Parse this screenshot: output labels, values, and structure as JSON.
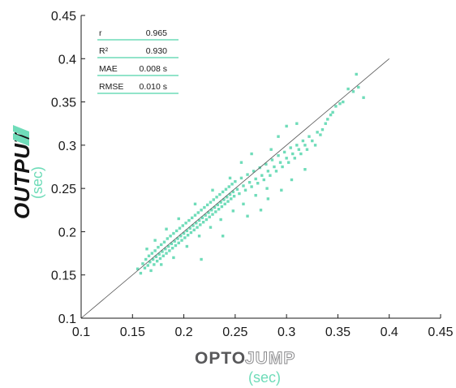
{
  "chart_data": {
    "type": "scatter",
    "xlabel_brand_solid": "OPTO",
    "xlabel_brand_outline": "JUMP",
    "xlabel_unit": "(sec)",
    "ylabel_brand": "OUTPUT",
    "ylabel_unit": "(sec)",
    "xlim": [
      0.1,
      0.45
    ],
    "ylim": [
      0.1,
      0.45
    ],
    "xticks": [
      "0.1",
      "0.15",
      "0.2",
      "0.25",
      "0.3",
      "0.35",
      "0.4",
      "0.45"
    ],
    "yticks": [
      "0.1",
      "0.15",
      "0.2",
      "0.25",
      "0.3",
      "0.35",
      "0.4",
      "0.45"
    ],
    "identity_line": {
      "from": [
        0.1,
        0.1
      ],
      "to": [
        0.4,
        0.4
      ],
      "color": "#555555"
    },
    "point_color": "#6fdcb9",
    "accent_color": "#6fdcb9",
    "grid": false,
    "stats_table": [
      {
        "label": "r",
        "value": "0.965"
      },
      {
        "label": "R²",
        "value": "0.930"
      },
      {
        "label": "MAE",
        "value": "0.008 s"
      },
      {
        "label": "RMSE",
        "value": "0.010 s"
      }
    ],
    "points": [
      [
        0.155,
        0.157
      ],
      [
        0.158,
        0.152
      ],
      [
        0.16,
        0.163
      ],
      [
        0.162,
        0.158
      ],
      [
        0.163,
        0.168
      ],
      [
        0.165,
        0.161
      ],
      [
        0.166,
        0.172
      ],
      [
        0.167,
        0.165
      ],
      [
        0.168,
        0.155
      ],
      [
        0.169,
        0.175
      ],
      [
        0.17,
        0.168
      ],
      [
        0.171,
        0.162
      ],
      [
        0.172,
        0.178
      ],
      [
        0.173,
        0.171
      ],
      [
        0.174,
        0.166
      ],
      [
        0.175,
        0.182
      ],
      [
        0.176,
        0.174
      ],
      [
        0.177,
        0.169
      ],
      [
        0.178,
        0.185
      ],
      [
        0.179,
        0.177
      ],
      [
        0.18,
        0.172
      ],
      [
        0.181,
        0.188
      ],
      [
        0.182,
        0.18
      ],
      [
        0.183,
        0.175
      ],
      [
        0.184,
        0.192
      ],
      [
        0.185,
        0.183
      ],
      [
        0.186,
        0.178
      ],
      [
        0.187,
        0.195
      ],
      [
        0.188,
        0.186
      ],
      [
        0.189,
        0.181
      ],
      [
        0.19,
        0.198
      ],
      [
        0.191,
        0.189
      ],
      [
        0.192,
        0.184
      ],
      [
        0.193,
        0.201
      ],
      [
        0.194,
        0.192
      ],
      [
        0.195,
        0.187
      ],
      [
        0.196,
        0.204
      ],
      [
        0.197,
        0.195
      ],
      [
        0.198,
        0.19
      ],
      [
        0.199,
        0.207
      ],
      [
        0.2,
        0.198
      ],
      [
        0.201,
        0.193
      ],
      [
        0.202,
        0.21
      ],
      [
        0.203,
        0.201
      ],
      [
        0.204,
        0.196
      ],
      [
        0.205,
        0.213
      ],
      [
        0.206,
        0.204
      ],
      [
        0.207,
        0.199
      ],
      [
        0.208,
        0.216
      ],
      [
        0.209,
        0.207
      ],
      [
        0.21,
        0.202
      ],
      [
        0.211,
        0.219
      ],
      [
        0.212,
        0.21
      ],
      [
        0.213,
        0.205
      ],
      [
        0.214,
        0.222
      ],
      [
        0.215,
        0.213
      ],
      [
        0.216,
        0.208
      ],
      [
        0.217,
        0.225
      ],
      [
        0.218,
        0.216
      ],
      [
        0.219,
        0.211
      ],
      [
        0.22,
        0.228
      ],
      [
        0.221,
        0.219
      ],
      [
        0.222,
        0.214
      ],
      [
        0.223,
        0.231
      ],
      [
        0.224,
        0.222
      ],
      [
        0.225,
        0.217
      ],
      [
        0.226,
        0.234
      ],
      [
        0.227,
        0.225
      ],
      [
        0.228,
        0.22
      ],
      [
        0.229,
        0.237
      ],
      [
        0.23,
        0.228
      ],
      [
        0.231,
        0.223
      ],
      [
        0.232,
        0.24
      ],
      [
        0.233,
        0.231
      ],
      [
        0.234,
        0.226
      ],
      [
        0.235,
        0.243
      ],
      [
        0.236,
        0.234
      ],
      [
        0.237,
        0.229
      ],
      [
        0.238,
        0.246
      ],
      [
        0.239,
        0.237
      ],
      [
        0.24,
        0.232
      ],
      [
        0.241,
        0.249
      ],
      [
        0.242,
        0.24
      ],
      [
        0.243,
        0.235
      ],
      [
        0.244,
        0.252
      ],
      [
        0.245,
        0.243
      ],
      [
        0.246,
        0.238
      ],
      [
        0.247,
        0.255
      ],
      [
        0.248,
        0.246
      ],
      [
        0.249,
        0.241
      ],
      [
        0.25,
        0.258
      ],
      [
        0.252,
        0.249
      ],
      [
        0.254,
        0.244
      ],
      [
        0.256,
        0.262
      ],
      [
        0.258,
        0.253
      ],
      [
        0.26,
        0.248
      ],
      [
        0.262,
        0.266
      ],
      [
        0.264,
        0.257
      ],
      [
        0.266,
        0.252
      ],
      [
        0.268,
        0.27
      ],
      [
        0.27,
        0.261
      ],
      [
        0.272,
        0.256
      ],
      [
        0.274,
        0.274
      ],
      [
        0.276,
        0.265
      ],
      [
        0.278,
        0.26
      ],
      [
        0.28,
        0.278
      ],
      [
        0.282,
        0.27
      ],
      [
        0.284,
        0.265
      ],
      [
        0.286,
        0.283
      ],
      [
        0.288,
        0.275
      ],
      [
        0.29,
        0.27
      ],
      [
        0.292,
        0.288
      ],
      [
        0.294,
        0.28
      ],
      [
        0.296,
        0.275
      ],
      [
        0.298,
        0.292
      ],
      [
        0.3,
        0.285
      ],
      [
        0.302,
        0.28
      ],
      [
        0.304,
        0.297
      ],
      [
        0.306,
        0.29
      ],
      [
        0.308,
        0.285
      ],
      [
        0.31,
        0.3
      ],
      [
        0.312,
        0.295
      ],
      [
        0.314,
        0.29
      ],
      [
        0.316,
        0.305
      ],
      [
        0.318,
        0.3
      ],
      [
        0.32,
        0.295
      ],
      [
        0.322,
        0.31
      ],
      [
        0.325,
        0.305
      ],
      [
        0.328,
        0.3
      ],
      [
        0.33,
        0.315
      ],
      [
        0.333,
        0.312
      ],
      [
        0.335,
        0.318
      ],
      [
        0.338,
        0.325
      ],
      [
        0.34,
        0.33
      ],
      [
        0.343,
        0.335
      ],
      [
        0.345,
        0.338
      ],
      [
        0.348,
        0.345
      ],
      [
        0.352,
        0.348
      ],
      [
        0.355,
        0.35
      ],
      [
        0.36,
        0.365
      ],
      [
        0.365,
        0.362
      ],
      [
        0.368,
        0.382
      ],
      [
        0.37,
        0.367
      ],
      [
        0.375,
        0.355
      ],
      [
        0.217,
        0.168
      ],
      [
        0.238,
        0.195
      ],
      [
        0.262,
        0.218
      ],
      [
        0.275,
        0.225
      ],
      [
        0.282,
        0.238
      ],
      [
        0.295,
        0.248
      ],
      [
        0.305,
        0.26
      ],
      [
        0.318,
        0.272
      ],
      [
        0.256,
        0.28
      ],
      [
        0.3,
        0.322
      ],
      [
        0.31,
        0.325
      ],
      [
        0.292,
        0.31
      ],
      [
        0.285,
        0.295
      ],
      [
        0.266,
        0.29
      ],
      [
        0.245,
        0.262
      ],
      [
        0.228,
        0.248
      ],
      [
        0.211,
        0.232
      ],
      [
        0.195,
        0.215
      ],
      [
        0.183,
        0.203
      ],
      [
        0.172,
        0.19
      ],
      [
        0.164,
        0.18
      ],
      [
        0.178,
        0.162
      ],
      [
        0.19,
        0.17
      ],
      [
        0.203,
        0.183
      ],
      [
        0.215,
        0.195
      ],
      [
        0.226,
        0.205
      ],
      [
        0.236,
        0.214
      ],
      [
        0.248,
        0.224
      ],
      [
        0.258,
        0.232
      ],
      [
        0.27,
        0.242
      ],
      [
        0.281,
        0.25
      ]
    ]
  }
}
